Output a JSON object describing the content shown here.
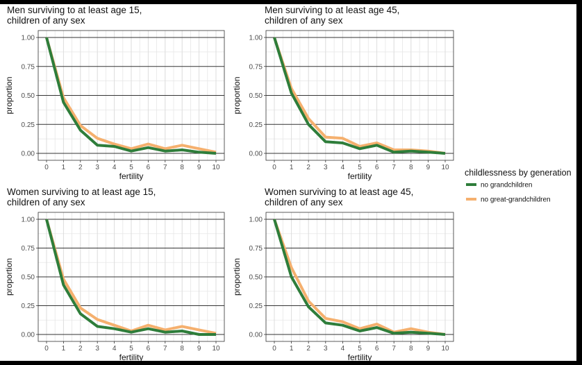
{
  "colors": {
    "series_green": "#2e7d3a",
    "series_orange": "#f5b06e",
    "grid_major": "#333333",
    "grid_minor": "#e6e6e6",
    "border": "#333333"
  },
  "legend": {
    "title": "childlessness by generation",
    "items": [
      {
        "label": "no grandchildren",
        "color": "#2e7d3a"
      },
      {
        "label": "no great-grandchildren",
        "color": "#f5b06e"
      }
    ]
  },
  "chart_data": [
    {
      "type": "line",
      "title_lines": [
        "Men surviving to at least age 15,",
        " children of any sex"
      ],
      "xlabel": "fertility",
      "ylabel": "proportion",
      "x": [
        0,
        1,
        2,
        3,
        4,
        5,
        6,
        7,
        8,
        9,
        10
      ],
      "xlim": [
        0,
        10
      ],
      "ylim": [
        0,
        1
      ],
      "yticks": [
        "0.00",
        "0.25",
        "0.50",
        "0.75",
        "1.00"
      ],
      "series": [
        {
          "name": "no grandchildren",
          "color": "#2e7d3a",
          "values": [
            1.0,
            0.44,
            0.2,
            0.07,
            0.06,
            0.02,
            0.05,
            0.02,
            0.03,
            0.01,
            0.0
          ]
        },
        {
          "name": "no great-grandchildren",
          "color": "#f5b06e",
          "values": [
            1.0,
            0.48,
            0.24,
            0.13,
            0.08,
            0.04,
            0.08,
            0.04,
            0.07,
            0.04,
            0.01
          ]
        }
      ]
    },
    {
      "type": "line",
      "title_lines": [
        "Men surviving to at least age 45,",
        " children of any sex"
      ],
      "xlabel": "fertility",
      "ylabel": "proportion",
      "x": [
        0,
        1,
        2,
        3,
        4,
        5,
        6,
        7,
        8,
        9,
        10
      ],
      "xlim": [
        0,
        10
      ],
      "ylim": [
        0,
        1
      ],
      "yticks": [
        "0.00",
        "0.25",
        "0.50",
        "0.75",
        "1.00"
      ],
      "series": [
        {
          "name": "no grandchildren",
          "color": "#2e7d3a",
          "values": [
            1.0,
            0.52,
            0.25,
            0.1,
            0.09,
            0.04,
            0.07,
            0.01,
            0.02,
            0.01,
            0.0
          ]
        },
        {
          "name": "no great-grandchildren",
          "color": "#f5b06e",
          "values": [
            1.0,
            0.56,
            0.3,
            0.14,
            0.13,
            0.06,
            0.09,
            0.03,
            0.03,
            0.02,
            0.0
          ]
        }
      ]
    },
    {
      "type": "line",
      "title_lines": [
        "Women surviving to at least age 15,",
        " children of any sex"
      ],
      "xlabel": "fertility",
      "ylabel": "proportion",
      "x": [
        0,
        1,
        2,
        3,
        4,
        5,
        6,
        7,
        8,
        9,
        10
      ],
      "xlim": [
        0,
        10
      ],
      "ylim": [
        0,
        1
      ],
      "yticks": [
        "0.00",
        "0.25",
        "0.50",
        "0.75",
        "1.00"
      ],
      "series": [
        {
          "name": "no grandchildren",
          "color": "#2e7d3a",
          "values": [
            1.0,
            0.43,
            0.18,
            0.07,
            0.05,
            0.02,
            0.05,
            0.02,
            0.03,
            0.0,
            0.0
          ]
        },
        {
          "name": "no great-grandchildren",
          "color": "#f5b06e",
          "values": [
            1.0,
            0.48,
            0.23,
            0.13,
            0.08,
            0.03,
            0.08,
            0.04,
            0.07,
            0.04,
            0.01
          ]
        }
      ]
    },
    {
      "type": "line",
      "title_lines": [
        "Women surviving to at least age 45,",
        " children of any sex"
      ],
      "xlabel": "fertility",
      "ylabel": "proportion",
      "x": [
        0,
        1,
        2,
        3,
        4,
        5,
        6,
        7,
        8,
        9,
        10
      ],
      "xlim": [
        0,
        10
      ],
      "ylim": [
        0,
        1
      ],
      "yticks": [
        "0.00",
        "0.25",
        "0.50",
        "0.75",
        "1.00"
      ],
      "series": [
        {
          "name": "no grandchildren",
          "color": "#2e7d3a",
          "values": [
            1.0,
            0.5,
            0.24,
            0.1,
            0.08,
            0.03,
            0.06,
            0.01,
            0.02,
            0.01,
            0.0
          ]
        },
        {
          "name": "no great-grandchildren",
          "color": "#f5b06e",
          "values": [
            1.0,
            0.58,
            0.29,
            0.14,
            0.11,
            0.05,
            0.09,
            0.02,
            0.05,
            0.02,
            0.0
          ]
        }
      ]
    }
  ]
}
